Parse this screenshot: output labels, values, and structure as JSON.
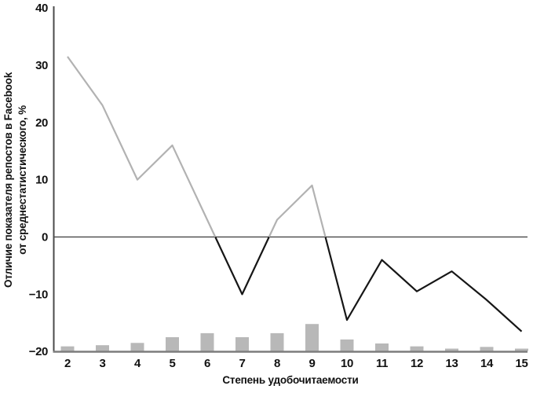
{
  "chart_data": {
    "type": "line",
    "title": "",
    "xlabel": "Степень удобочитаемости",
    "ylabel": "Отличие показателя репостов в Facebook от среднестатистического, %",
    "ylabel_lines": [
      "Отличие показателя репостов в Facebook",
      "от среднестатистического, %"
    ],
    "x": [
      2,
      3,
      4,
      5,
      6,
      7,
      8,
      9,
      10,
      11,
      12,
      13,
      14,
      15
    ],
    "xticks": [
      "2",
      "3",
      "4",
      "5",
      "6",
      "7",
      "8",
      "9",
      "10",
      "11",
      "12",
      "13",
      "14",
      "15"
    ],
    "ylim": [
      -20,
      40
    ],
    "yticks": [
      40,
      30,
      20,
      10,
      0,
      -10,
      -20
    ],
    "grid": false,
    "zero_line": true,
    "legend": "none",
    "series": [
      {
        "name": "repost-deviation-line",
        "type": "line",
        "values": [
          31.5,
          23,
          10,
          16,
          3,
          -10,
          3,
          9,
          -14.5,
          -4,
          -9.5,
          -6,
          -11,
          -16.5
        ],
        "style_note": "gray stroke above zero, black stroke below zero"
      },
      {
        "name": "baseline-bars",
        "type": "bar",
        "baseline": -20,
        "values": [
          -19.1,
          -18.9,
          -18.5,
          -17.5,
          -16.8,
          -17.5,
          -16.8,
          -15.2,
          -17.9,
          -18.6,
          -19.1,
          -19.5,
          -19.2,
          -19.5
        ]
      }
    ],
    "colors": {
      "line_above_zero": "#b2b2b2",
      "line_below_zero": "#161616",
      "bar_fill": "#b8b8b8",
      "y_axis": "#4a4a4a",
      "x_axis": "#7d7d7d",
      "zero_line": "#3a3a3a",
      "text": "#111111",
      "background": "#ffffff"
    }
  }
}
